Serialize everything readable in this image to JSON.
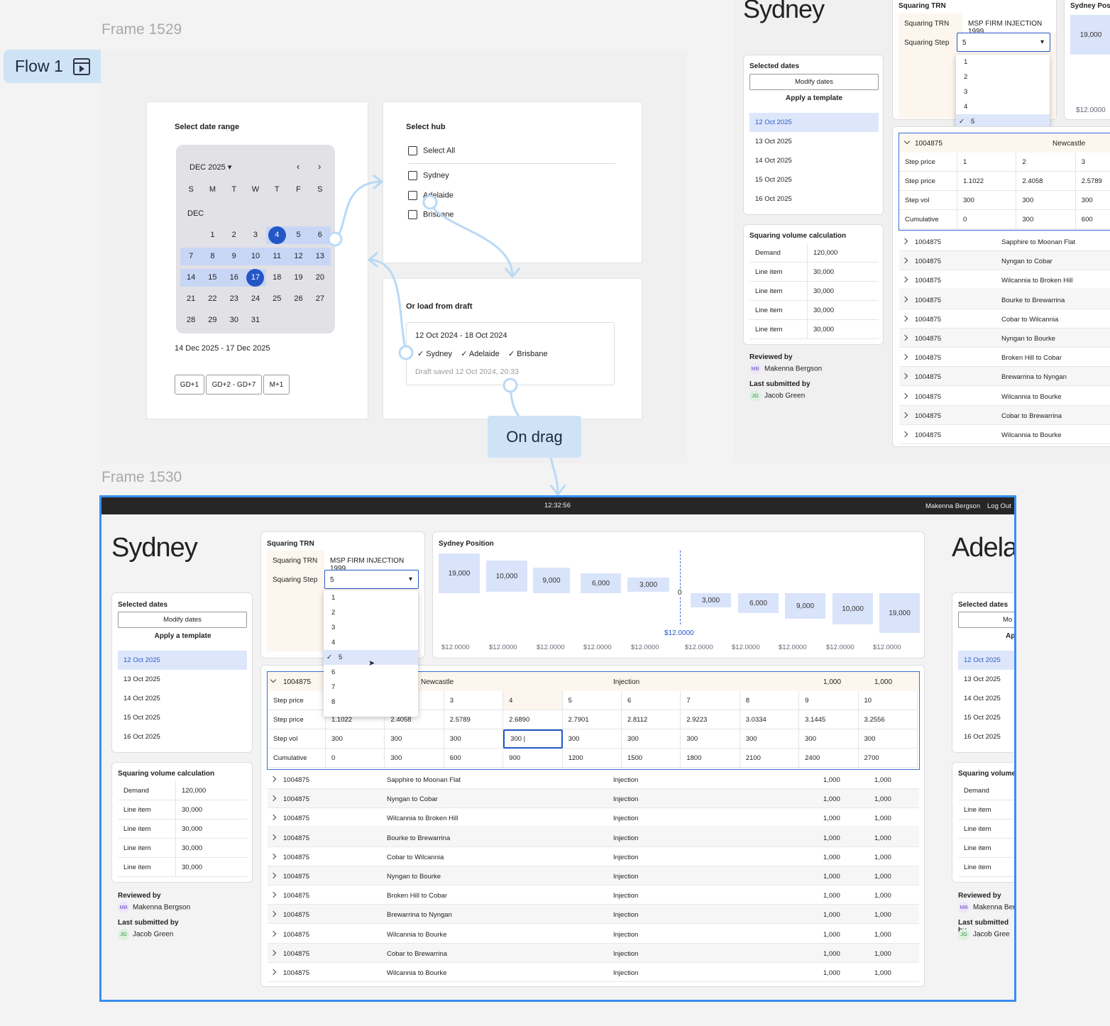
{
  "frames": {
    "f1529": "Frame 1529",
    "f1530": "Frame 1530"
  },
  "flow": {
    "label": "Flow 1"
  },
  "connector": {
    "label": "On drag"
  },
  "date_range": {
    "title": "Select date range",
    "month": "DEC 2025",
    "weekdays": [
      "S",
      "M",
      "T",
      "W",
      "T",
      "F",
      "S"
    ],
    "month_short": "DEC",
    "weeks": [
      [
        "",
        "1",
        "2",
        "3",
        "4",
        "5",
        "6"
      ],
      [
        "7",
        "8",
        "9",
        "10",
        "11",
        "12",
        "13"
      ],
      [
        "14",
        "15",
        "16",
        "17",
        "18",
        "19",
        "20"
      ],
      [
        "21",
        "22",
        "23",
        "24",
        "25",
        "26",
        "27"
      ],
      [
        "28",
        "29",
        "30",
        "31",
        "",
        "",
        ""
      ]
    ],
    "selected_text": "14 Dec 2025 - 17 Dec 2025",
    "presets": [
      "GD+1",
      "GD+2 - GD+7",
      "M+1"
    ]
  },
  "hub": {
    "title": "Select hub",
    "select_all": "Select All",
    "options": [
      "Sydney",
      "Adelaide",
      "Brisbane"
    ]
  },
  "draft": {
    "title": "Or load from draft",
    "range": "12 Oct 2024 - 18 Oct 2024",
    "hubs": [
      "Sydney",
      "Adelaide",
      "Brisbane"
    ],
    "saved": "Draft saved 12 Oct 2024, 20:33"
  },
  "topbar": {
    "clock": "12:32:56",
    "user": "Makenna Bergson",
    "logout": "Log Out"
  },
  "hub_name": "Sydney",
  "next_hub": "Adela",
  "selected_dates": {
    "title": "Selected dates",
    "modify": "Modify dates",
    "apply": "Apply a template",
    "dates": [
      "12 Oct 2025",
      "13 Oct 2025",
      "14 Oct 2025",
      "15 Oct 2025",
      "16 Oct 2025"
    ]
  },
  "squaring_calc": {
    "title": "Squaring volume calculation",
    "rows": [
      [
        "Demand",
        "120,000"
      ],
      [
        "Line item",
        "30,000"
      ],
      [
        "Line item",
        "30,000"
      ],
      [
        "Line item",
        "30,000"
      ],
      [
        "Line item",
        "30,000"
      ]
    ]
  },
  "reviewed": {
    "label": "Reviewed by",
    "initials": "MB",
    "name": "Makenna Bergson"
  },
  "submitted": {
    "label": "Last submitted by",
    "initials": "JG",
    "name": "Jacob Green"
  },
  "squaring_trn": {
    "title": "Squaring TRN",
    "trn_label": "Squaring TRN",
    "trn_value": "MSP FIRM INJECTION 1999",
    "step_label": "Squaring Step",
    "step_value": "5",
    "options": [
      "1",
      "2",
      "3",
      "4",
      "5",
      "6",
      "7",
      "8"
    ]
  },
  "position": {
    "title": "Sydney Position",
    "short_title": "Sydney Positi",
    "zero": "0",
    "center_price": "$12.0000",
    "left_values": [
      "19,000",
      "10,000",
      "9,000",
      "6,000",
      "3,000"
    ],
    "right_values": [
      "3,000",
      "6,000",
      "9,000",
      "10,000",
      "19,000"
    ],
    "prices": [
      "$12.0000",
      "$12.0000",
      "$12.0000",
      "$12.0000",
      "$12.0000",
      "$12.0000",
      "$12.0000",
      "$12.0000",
      "$12.0000",
      "$12.0000"
    ]
  },
  "expanded": {
    "id": "1004875",
    "route": "Newcastle",
    "type": "Injection",
    "v1": "1,000",
    "v2": "1,000",
    "rows": [
      [
        "Step price",
        "1",
        "2",
        "3",
        "4",
        "5",
        "6",
        "7",
        "8",
        "9",
        "10"
      ],
      [
        "Step price",
        "1.1022",
        "2.4058",
        "2.5789",
        "2.6890",
        "2.7901",
        "2.8112",
        "2.9223",
        "3.0334",
        "3.1445",
        "3.2556"
      ],
      [
        "Step vol",
        "300",
        "300",
        "300",
        "300 |",
        "300",
        "300",
        "300",
        "300",
        "300",
        "300"
      ],
      [
        "Cumulative",
        "0",
        "300",
        "600",
        "900",
        "1200",
        "1500",
        "1800",
        "2100",
        "2400",
        "2700"
      ]
    ]
  },
  "table_rows": [
    {
      "id": "1004875",
      "route": "Sapphire to Moonan Flat",
      "type": "Injection",
      "v1": "1,000",
      "v2": "1,000"
    },
    {
      "id": "1004875",
      "route": "Nyngan to Cobar",
      "type": "Injection",
      "v1": "1,000",
      "v2": "1,000"
    },
    {
      "id": "1004875",
      "route": "Wilcannia to Broken Hill",
      "type": "Injection",
      "v1": "1,000",
      "v2": "1,000"
    },
    {
      "id": "1004875",
      "route": "Bourke to Brewarrina",
      "type": "Injection",
      "v1": "1,000",
      "v2": "1,000"
    },
    {
      "id": "1004875",
      "route": "Cobar to Wilcannia",
      "type": "Injection",
      "v1": "1,000",
      "v2": "1,000"
    },
    {
      "id": "1004875",
      "route": "Nyngan to Bourke",
      "type": "Injection",
      "v1": "1,000",
      "v2": "1,000"
    },
    {
      "id": "1004875",
      "route": "Broken Hill to Cobar",
      "type": "Injection",
      "v1": "1,000",
      "v2": "1,000"
    },
    {
      "id": "1004875",
      "route": "Brewarrina to Nyngan",
      "type": "Injection",
      "v1": "1,000",
      "v2": "1,000"
    },
    {
      "id": "1004875",
      "route": "Wilcannia to Bourke",
      "type": "Injection",
      "v1": "1,000",
      "v2": "1,000"
    },
    {
      "id": "1004875",
      "route": "Cobar to Brewarrina",
      "type": "Injection",
      "v1": "1,000",
      "v2": "1,000"
    },
    {
      "id": "1004875",
      "route": "Wilcannia to Bourke",
      "type": "Injection",
      "v1": "1,000",
      "v2": "1,000"
    }
  ],
  "adel_side": {
    "modify": "Mo",
    "apply": "Apply",
    "calc_title": "Squaring volume c",
    "reviewed_name": "Makenna Berg",
    "submitted_name": "Jacob Gree"
  },
  "colors": {
    "accent": "#2457c5",
    "selection": "#dde6fb",
    "frame_border": "#3a8ef0",
    "connector": "#b9d9f6",
    "topbar": "#262626"
  }
}
